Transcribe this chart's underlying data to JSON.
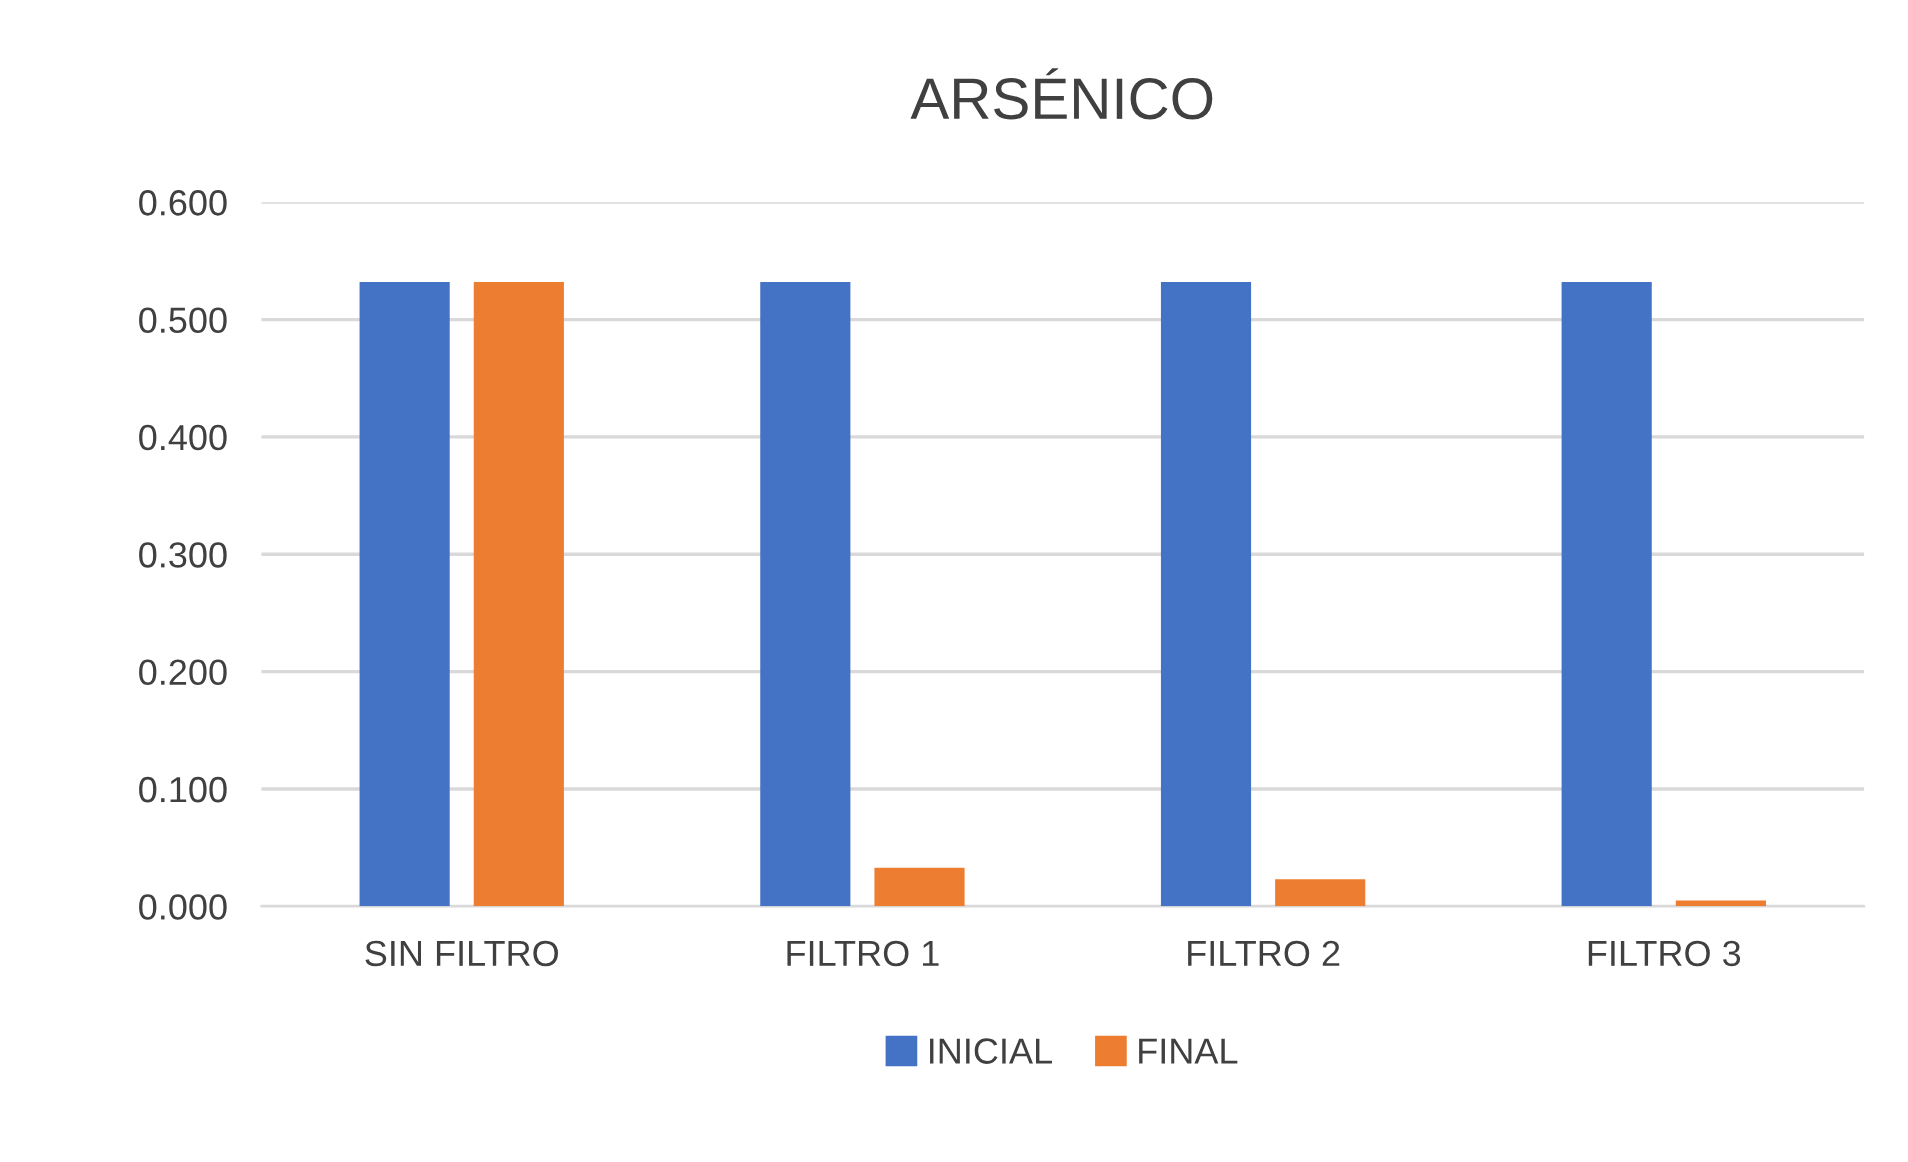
{
  "chart_data": {
    "type": "bar",
    "title": "ARSÉNICO",
    "categories": [
      "SIN FILTRO",
      "FILTRO 1",
      "FILTRO 2",
      "FILTRO 3"
    ],
    "series": [
      {
        "name": "INICIAL",
        "color": "#4472c4",
        "values": [
          0.532,
          0.532,
          0.532,
          0.532
        ]
      },
      {
        "name": "FINAL",
        "color": "#ed7d31",
        "values": [
          0.532,
          0.033,
          0.023,
          0.005
        ]
      }
    ],
    "ylim": [
      0,
      0.6
    ],
    "yticks": [
      {
        "value": 0,
        "label": "0.000"
      },
      {
        "value": 0.1,
        "label": "0.100"
      },
      {
        "value": 0.2,
        "label": "0.200"
      },
      {
        "value": 0.3,
        "label": "0.300"
      },
      {
        "value": 0.4,
        "label": "0.400"
      },
      {
        "value": 0.5,
        "label": "0.500"
      },
      {
        "value": 0.6,
        "label": "0.600"
      }
    ],
    "grid": "y",
    "legend": "bottom"
  }
}
